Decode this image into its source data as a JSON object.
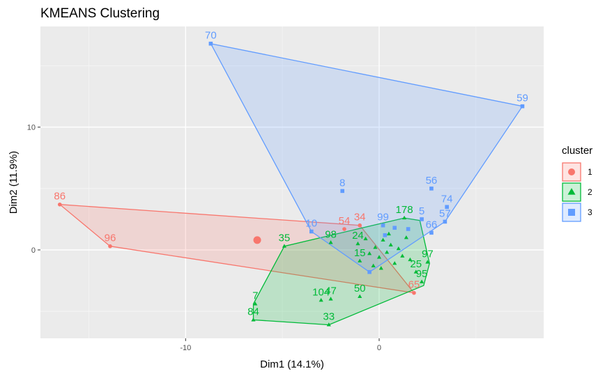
{
  "chart_data": {
    "type": "scatter",
    "title": "KMEANS Clustering",
    "xlabel": "Dim1 (14.1%)",
    "ylabel": "Dim2 (11.9%)",
    "xlim": [
      -17.5,
      8.5
    ],
    "ylim": [
      -7.2,
      18.2
    ],
    "xticks": [
      -10,
      0
    ],
    "yticks": [
      0,
      10
    ],
    "xminor": [
      -15,
      -5,
      5
    ],
    "yminor": [
      -5,
      5,
      15
    ],
    "grid": true,
    "legend": {
      "title": "cluster",
      "position": "right",
      "entries": [
        {
          "label": "1",
          "color": "#F8766D",
          "shape": "circle"
        },
        {
          "label": "2",
          "color": "#00BA38",
          "shape": "triangle"
        },
        {
          "label": "3",
          "color": "#619CFF",
          "shape": "square"
        }
      ]
    },
    "clusters": [
      {
        "name": "1",
        "color": "#F8766D",
        "shape": "circle",
        "centroid": [
          -6.3,
          0.8
        ],
        "hull": [
          [
            -16.5,
            3.7
          ],
          [
            -1.0,
            2.0
          ],
          [
            1.8,
            -3.5
          ],
          [
            -13.9,
            0.3
          ]
        ],
        "points": [
          {
            "label": "86",
            "x": -16.5,
            "y": 3.7
          },
          {
            "label": "96",
            "x": -13.9,
            "y": 0.3
          },
          {
            "label": "54",
            "x": -1.8,
            "y": 1.7
          },
          {
            "label": "34",
            "x": -1.0,
            "y": 2.0
          },
          {
            "label": "65",
            "x": 1.8,
            "y": -3.5
          }
        ]
      },
      {
        "name": "2",
        "color": "#00BA38",
        "shape": "triangle",
        "hull": [
          [
            -6.5,
            -5.7
          ],
          [
            -6.5,
            -4.4
          ],
          [
            -4.9,
            0.3
          ],
          [
            1.3,
            2.6
          ],
          [
            2.1,
            2.4
          ],
          [
            2.6,
            -1.1
          ],
          [
            2.3,
            -2.9
          ],
          [
            -2.6,
            -6.1
          ]
        ],
        "points": [
          {
            "label": "178",
            "x": 1.3,
            "y": 2.6
          },
          {
            "label": "35",
            "x": -4.9,
            "y": 0.3
          },
          {
            "label": "98",
            "x": -2.5,
            "y": 0.6
          },
          {
            "label": "24",
            "x": -1.1,
            "y": 0.5
          },
          {
            "label": "97",
            "x": 2.5,
            "y": -1.0
          },
          {
            "label": "25",
            "x": 1.9,
            "y": -1.8
          },
          {
            "label": "95",
            "x": 2.2,
            "y": -2.6
          },
          {
            "label": "50",
            "x": -1.0,
            "y": -3.8
          },
          {
            "label": "104",
            "x": -3.0,
            "y": -4.1
          },
          {
            "label": "47",
            "x": -2.5,
            "y": -4.0
          },
          {
            "label": "7",
            "x": -6.4,
            "y": -4.4
          },
          {
            "label": "84",
            "x": -6.5,
            "y": -5.7
          },
          {
            "label": "33",
            "x": -2.6,
            "y": -6.1
          },
          {
            "label": "15",
            "x": -1.0,
            "y": -0.9
          },
          {
            "label": "",
            "x": -0.5,
            "y": -0.3
          },
          {
            "label": "",
            "x": -0.2,
            "y": 0.2
          },
          {
            "label": "",
            "x": 0.0,
            "y": -0.6
          },
          {
            "label": "",
            "x": 0.2,
            "y": 0.8
          },
          {
            "label": "",
            "x": 0.4,
            "y": -0.2
          },
          {
            "label": "",
            "x": 0.6,
            "y": 0.4
          },
          {
            "label": "",
            "x": 0.8,
            "y": -1.1
          },
          {
            "label": "",
            "x": 1.0,
            "y": 0.1
          },
          {
            "label": "",
            "x": 1.2,
            "y": -0.5
          },
          {
            "label": "",
            "x": 1.4,
            "y": 1.0
          },
          {
            "label": "",
            "x": -0.3,
            "y": -1.3
          },
          {
            "label": "",
            "x": 0.1,
            "y": -1.5
          },
          {
            "label": "",
            "x": 0.5,
            "y": 1.3
          },
          {
            "label": "",
            "x": -0.7,
            "y": 0.9
          },
          {
            "label": "",
            "x": 1.6,
            "y": -0.8
          }
        ]
      },
      {
        "name": "3",
        "color": "#619CFF",
        "shape": "square",
        "hull": [
          [
            -8.7,
            16.8
          ],
          [
            7.4,
            11.7
          ],
          [
            3.4,
            2.3
          ],
          [
            -0.5,
            -1.8
          ],
          [
            -3.5,
            1.5
          ]
        ],
        "points": [
          {
            "label": "70",
            "x": -8.7,
            "y": 16.8
          },
          {
            "label": "59",
            "x": 7.4,
            "y": 11.7
          },
          {
            "label": "8",
            "x": -1.9,
            "y": 4.8
          },
          {
            "label": "56",
            "x": 2.7,
            "y": 5.0
          },
          {
            "label": "74",
            "x": 3.5,
            "y": 3.5
          },
          {
            "label": "57",
            "x": 3.4,
            "y": 2.3
          },
          {
            "label": "5",
            "x": 2.2,
            "y": 2.5
          },
          {
            "label": "66",
            "x": 2.7,
            "y": 1.4
          },
          {
            "label": "10",
            "x": -3.5,
            "y": 1.5
          },
          {
            "label": "99",
            "x": 0.2,
            "y": 2.0
          },
          {
            "label": "",
            "x": 0.8,
            "y": 1.8
          },
          {
            "label": "",
            "x": 1.5,
            "y": 1.7
          },
          {
            "label": "",
            "x": 0.3,
            "y": 1.2
          },
          {
            "label": "",
            "x": -0.5,
            "y": -1.8
          }
        ]
      }
    ]
  }
}
